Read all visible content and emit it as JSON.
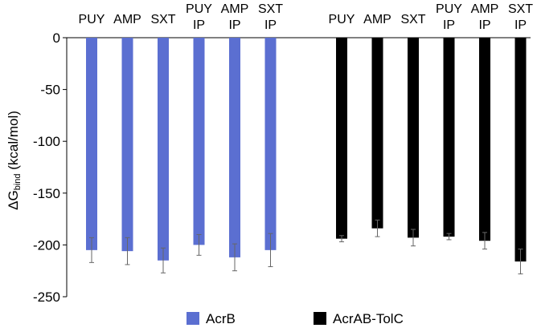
{
  "chart_data": {
    "type": "bar",
    "ylim": [
      -250,
      0
    ],
    "yticks": [
      0,
      -50,
      -100,
      -150,
      -200,
      -250
    ],
    "ylabel_main": "ΔG",
    "ylabel_sub": "bind",
    "ylabel_unit": " (kcal/mol)",
    "categories": [
      {
        "line1": "PUY",
        "line2": ""
      },
      {
        "line1": "AMP",
        "line2": ""
      },
      {
        "line1": "SXT",
        "line2": ""
      },
      {
        "line1": "PUY",
        "line2": "IP"
      },
      {
        "line1": "AMP",
        "line2": "IP"
      },
      {
        "line1": "SXT",
        "line2": "IP"
      }
    ],
    "series": [
      {
        "name": "AcrB",
        "color": "#5b6fd1",
        "values": [
          -205,
          -206,
          -215,
          -200,
          -212,
          -205
        ],
        "errors": [
          12,
          13,
          12,
          10,
          13,
          16
        ]
      },
      {
        "name": "AcrAB-TolC",
        "color": "#000000",
        "values": [
          -194,
          -184,
          -193,
          -192,
          -196,
          -216
        ],
        "errors": [
          3,
          8,
          8,
          3,
          8,
          12
        ]
      }
    ],
    "legend_placement": "bottom",
    "grid": false
  }
}
